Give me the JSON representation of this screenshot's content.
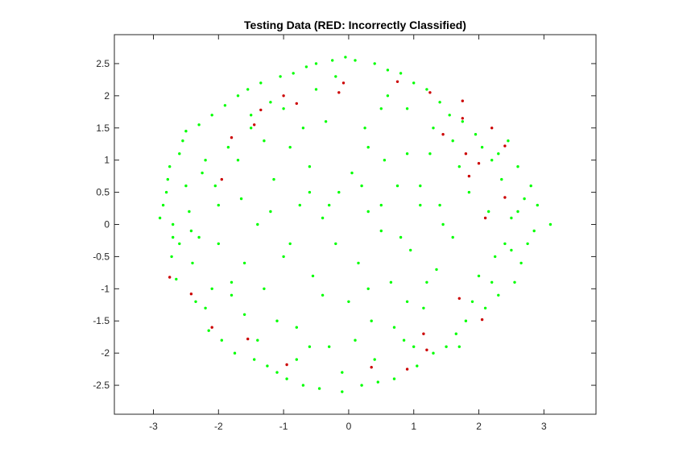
{
  "chart_data": {
    "type": "scatter",
    "title": "Testing Data (RED: Incorrectly Classified)",
    "xlabel": "",
    "ylabel": "",
    "xlim": [
      -3.6,
      3.8
    ],
    "ylim": [
      -2.95,
      2.95
    ],
    "x_ticks": [
      -3,
      -2,
      -1,
      0,
      1,
      2,
      3
    ],
    "y_ticks": [
      -2.5,
      -2,
      -1.5,
      -1,
      -0.5,
      0,
      0.5,
      1,
      1.5,
      2,
      2.5
    ],
    "grid": false,
    "legend": "none",
    "colors": {
      "correct": "#00ff00",
      "incorrect": "#cc0000",
      "axis": "#262626"
    },
    "series": [
      {
        "points": [
          [
            -2.9,
            0.1
          ],
          [
            -2.85,
            0.3
          ],
          [
            -2.8,
            0.5
          ],
          [
            -2.78,
            0.7
          ],
          [
            -2.75,
            0.9
          ],
          [
            -2.7,
            -0.2
          ],
          [
            -2.72,
            -0.5
          ],
          [
            -2.65,
            -0.85
          ],
          [
            -2.6,
            1.1
          ],
          [
            -2.55,
            1.3
          ],
          [
            -2.5,
            1.45
          ],
          [
            -2.45,
            0.2
          ],
          [
            -2.42,
            -0.1
          ],
          [
            -2.4,
            -0.6
          ],
          [
            -2.35,
            -1.2
          ],
          [
            -2.3,
            1.55
          ],
          [
            -2.25,
            0.8
          ],
          [
            -2.2,
            -1.3
          ],
          [
            -2.15,
            -1.65
          ],
          [
            -2.1,
            1.7
          ],
          [
            -2.05,
            0.6
          ],
          [
            -2.0,
            -0.3
          ],
          [
            -1.95,
            -1.8
          ],
          [
            -1.9,
            1.85
          ],
          [
            -1.85,
            1.2
          ],
          [
            -1.8,
            -0.9
          ],
          [
            -1.75,
            -2.0
          ],
          [
            -1.7,
            2.0
          ],
          [
            -1.65,
            0.4
          ],
          [
            -1.6,
            -1.4
          ],
          [
            -1.55,
            2.1
          ],
          [
            -1.5,
            1.5
          ],
          [
            -1.45,
            -2.1
          ],
          [
            -1.4,
            0.0
          ],
          [
            -1.35,
            2.2
          ],
          [
            -1.3,
            -1.0
          ],
          [
            -1.25,
            -2.2
          ],
          [
            -1.2,
            1.9
          ],
          [
            -1.15,
            0.7
          ],
          [
            -1.1,
            -2.3
          ],
          [
            -1.05,
            2.3
          ],
          [
            -1.0,
            -0.5
          ],
          [
            -0.95,
            -2.4
          ],
          [
            -0.9,
            1.2
          ],
          [
            -0.85,
            2.35
          ],
          [
            -0.8,
            -1.6
          ],
          [
            -0.75,
            0.3
          ],
          [
            -0.7,
            -2.5
          ],
          [
            -0.65,
            2.45
          ],
          [
            -0.6,
            0.9
          ],
          [
            -0.55,
            -0.8
          ],
          [
            -0.5,
            2.5
          ],
          [
            -0.45,
            -2.55
          ],
          [
            -0.4,
            0.1
          ],
          [
            -0.35,
            1.6
          ],
          [
            -0.3,
            -1.9
          ],
          [
            -0.25,
            2.55
          ],
          [
            -0.2,
            -0.3
          ],
          [
            -0.15,
            0.5
          ],
          [
            -0.1,
            -2.6
          ],
          [
            -0.05,
            2.6
          ],
          [
            0.0,
            -1.2
          ],
          [
            0.05,
            0.8
          ],
          [
            0.1,
            2.55
          ],
          [
            0.15,
            -0.6
          ],
          [
            0.2,
            -2.5
          ],
          [
            0.25,
            1.5
          ],
          [
            0.3,
            0.2
          ],
          [
            0.35,
            -1.5
          ],
          [
            0.4,
            2.5
          ],
          [
            0.45,
            -2.45
          ],
          [
            0.5,
            -0.1
          ],
          [
            0.55,
            1.0
          ],
          [
            0.6,
            2.4
          ],
          [
            0.65,
            -0.9
          ],
          [
            0.7,
            -2.4
          ],
          [
            0.75,
            0.6
          ],
          [
            0.8,
            2.35
          ],
          [
            0.85,
            -1.8
          ],
          [
            0.9,
            1.8
          ],
          [
            0.95,
            -0.4
          ],
          [
            1.0,
            2.2
          ],
          [
            1.05,
            -2.2
          ],
          [
            1.1,
            0.3
          ],
          [
            1.15,
            -1.3
          ],
          [
            1.2,
            2.1
          ],
          [
            1.25,
            1.1
          ],
          [
            1.3,
            -2.0
          ],
          [
            1.35,
            -0.7
          ],
          [
            1.4,
            1.9
          ],
          [
            1.45,
            0.0
          ],
          [
            1.5,
            -1.9
          ],
          [
            1.55,
            1.7
          ],
          [
            1.6,
            -0.2
          ],
          [
            1.65,
            -1.7
          ],
          [
            1.7,
            0.9
          ],
          [
            1.75,
            1.6
          ],
          [
            1.8,
            -1.5
          ],
          [
            1.85,
            0.5
          ],
          [
            1.9,
            -1.2
          ],
          [
            1.95,
            1.4
          ],
          [
            2.0,
            -0.8
          ],
          [
            2.05,
            1.2
          ],
          [
            2.1,
            -1.3
          ],
          [
            2.15,
            0.2
          ],
          [
            2.2,
            1.0
          ],
          [
            2.25,
            -0.5
          ],
          [
            2.3,
            -1.1
          ],
          [
            2.35,
            0.7
          ],
          [
            2.4,
            -0.3
          ],
          [
            2.45,
            1.3
          ],
          [
            2.5,
            0.1
          ],
          [
            2.55,
            -0.9
          ],
          [
            2.6,
            0.9
          ],
          [
            2.65,
            -0.6
          ],
          [
            2.7,
            0.4
          ],
          [
            2.75,
            -0.3
          ],
          [
            2.8,
            0.6
          ],
          [
            2.85,
            -0.1
          ],
          [
            3.1,
            0.0
          ],
          [
            -2.3,
            -0.2
          ],
          [
            -2.0,
            0.3
          ],
          [
            -1.6,
            -0.6
          ],
          [
            -1.2,
            0.2
          ],
          [
            -0.9,
            -0.3
          ],
          [
            -0.6,
            0.5
          ],
          [
            -0.3,
            0.3
          ],
          [
            0.2,
            0.6
          ],
          [
            0.5,
            0.3
          ],
          [
            0.8,
            -0.2
          ],
          [
            1.1,
            0.6
          ],
          [
            1.4,
            0.3
          ],
          [
            -1.7,
            1.0
          ],
          [
            -1.3,
            1.3
          ],
          [
            -0.7,
            1.5
          ],
          [
            0.3,
            1.2
          ],
          [
            0.9,
            1.1
          ],
          [
            1.3,
            1.5
          ],
          [
            -1.8,
            -1.1
          ],
          [
            -1.1,
            -1.5
          ],
          [
            -0.4,
            -1.1
          ],
          [
            0.3,
            -1.0
          ],
          [
            0.9,
            -1.2
          ],
          [
            1.2,
            -0.9
          ],
          [
            -1.4,
            -1.8
          ],
          [
            -0.6,
            -1.9
          ],
          [
            0.1,
            -1.8
          ],
          [
            0.7,
            -1.6
          ],
          [
            -2.5,
            0.6
          ],
          [
            -2.6,
            -0.3
          ],
          [
            2.6,
            0.2
          ],
          [
            2.5,
            -0.4
          ],
          [
            -2.2,
            1.0
          ],
          [
            2.3,
            1.1
          ],
          [
            -2.1,
            -1.0
          ],
          [
            2.2,
            -0.9
          ],
          [
            -1.5,
            1.7
          ],
          [
            1.6,
            1.3
          ],
          [
            -1.0,
            1.8
          ],
          [
            0.5,
            1.8
          ],
          [
            -0.8,
            -2.1
          ],
          [
            0.4,
            -2.1
          ],
          [
            1.0,
            -1.9
          ],
          [
            -0.2,
            2.3
          ],
          [
            0.6,
            2.0
          ],
          [
            -0.5,
            2.1
          ],
          [
            -0.1,
            -2.3
          ],
          [
            1.7,
            -1.9
          ],
          [
            -2.7,
            0.0
          ],
          [
            2.9,
            0.3
          ]
        ]
      },
      {
        "points": [
          [
            -2.75,
            -0.82
          ],
          [
            -2.42,
            -1.08
          ],
          [
            -2.1,
            -1.6
          ],
          [
            -1.95,
            0.7
          ],
          [
            -1.8,
            1.35
          ],
          [
            -1.55,
            -1.78
          ],
          [
            -1.45,
            1.55
          ],
          [
            -1.35,
            1.78
          ],
          [
            -1.0,
            2.0
          ],
          [
            -0.95,
            -2.18
          ],
          [
            -0.8,
            1.88
          ],
          [
            -0.15,
            2.05
          ],
          [
            -0.08,
            2.2
          ],
          [
            0.35,
            -2.22
          ],
          [
            0.75,
            2.22
          ],
          [
            0.9,
            -2.25
          ],
          [
            1.15,
            -1.7
          ],
          [
            1.25,
            2.05
          ],
          [
            1.2,
            -1.95
          ],
          [
            1.45,
            1.4
          ],
          [
            1.7,
            -1.15
          ],
          [
            1.75,
            1.65
          ],
          [
            1.75,
            1.92
          ],
          [
            1.8,
            1.1
          ],
          [
            1.85,
            0.75
          ],
          [
            2.0,
            0.95
          ],
          [
            2.05,
            -1.48
          ],
          [
            2.1,
            0.1
          ],
          [
            2.2,
            1.5
          ],
          [
            2.4,
            1.22
          ],
          [
            2.4,
            0.42
          ]
        ]
      }
    ]
  }
}
